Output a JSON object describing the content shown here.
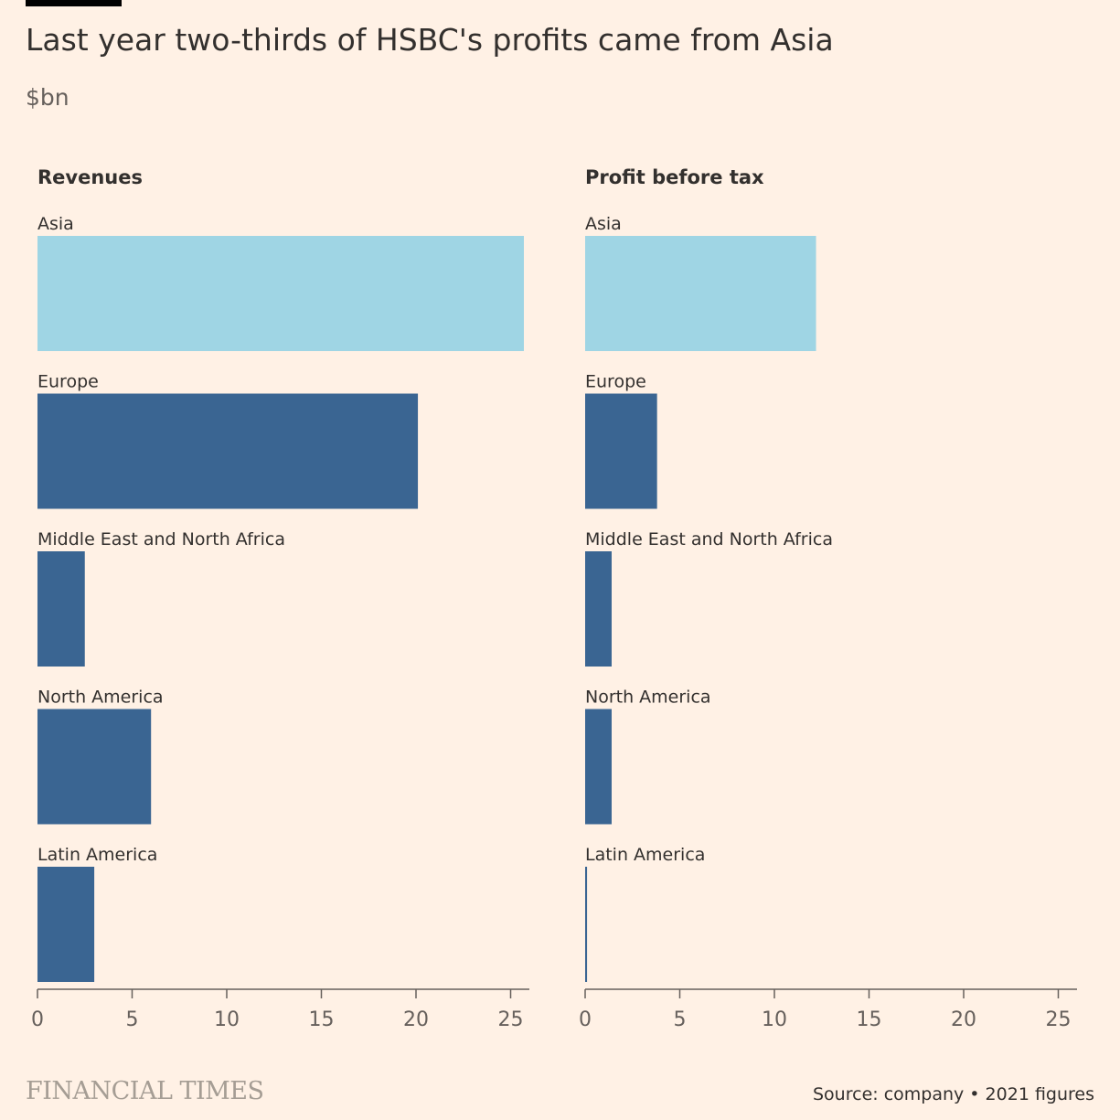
{
  "header": {
    "title": "Last year two-thirds of HSBC's profits came from Asia",
    "subtitle": "$bn"
  },
  "footer": {
    "brand": "FINANCIAL TIMES",
    "source": "Source: company • 2021 figures"
  },
  "colors": {
    "highlight": "#9fd5e4",
    "default": "#3a6592",
    "background": "#fff1e5"
  },
  "chart_data": [
    {
      "type": "bar",
      "orientation": "horizontal",
      "title": "Revenues",
      "categories": [
        "Asia",
        "Europe",
        "Middle East and North Africa",
        "North America",
        "Latin America"
      ],
      "values": [
        25.7,
        20.1,
        2.5,
        6.0,
        3.0
      ],
      "highlight": [
        "Asia"
      ],
      "xlim": [
        0,
        26
      ],
      "ticks": [
        "0",
        "5",
        "10",
        "15",
        "20",
        "25"
      ],
      "grid": false
    },
    {
      "type": "bar",
      "orientation": "horizontal",
      "title": "Profit before tax",
      "categories": [
        "Asia",
        "Europe",
        "Middle East and North Africa",
        "North America",
        "Latin America"
      ],
      "values": [
        12.2,
        3.8,
        1.4,
        1.4,
        0.1
      ],
      "highlight": [
        "Asia"
      ],
      "xlim": [
        0,
        26
      ],
      "ticks": [
        "0",
        "5",
        "10",
        "15",
        "20",
        "25"
      ],
      "grid": false
    }
  ]
}
